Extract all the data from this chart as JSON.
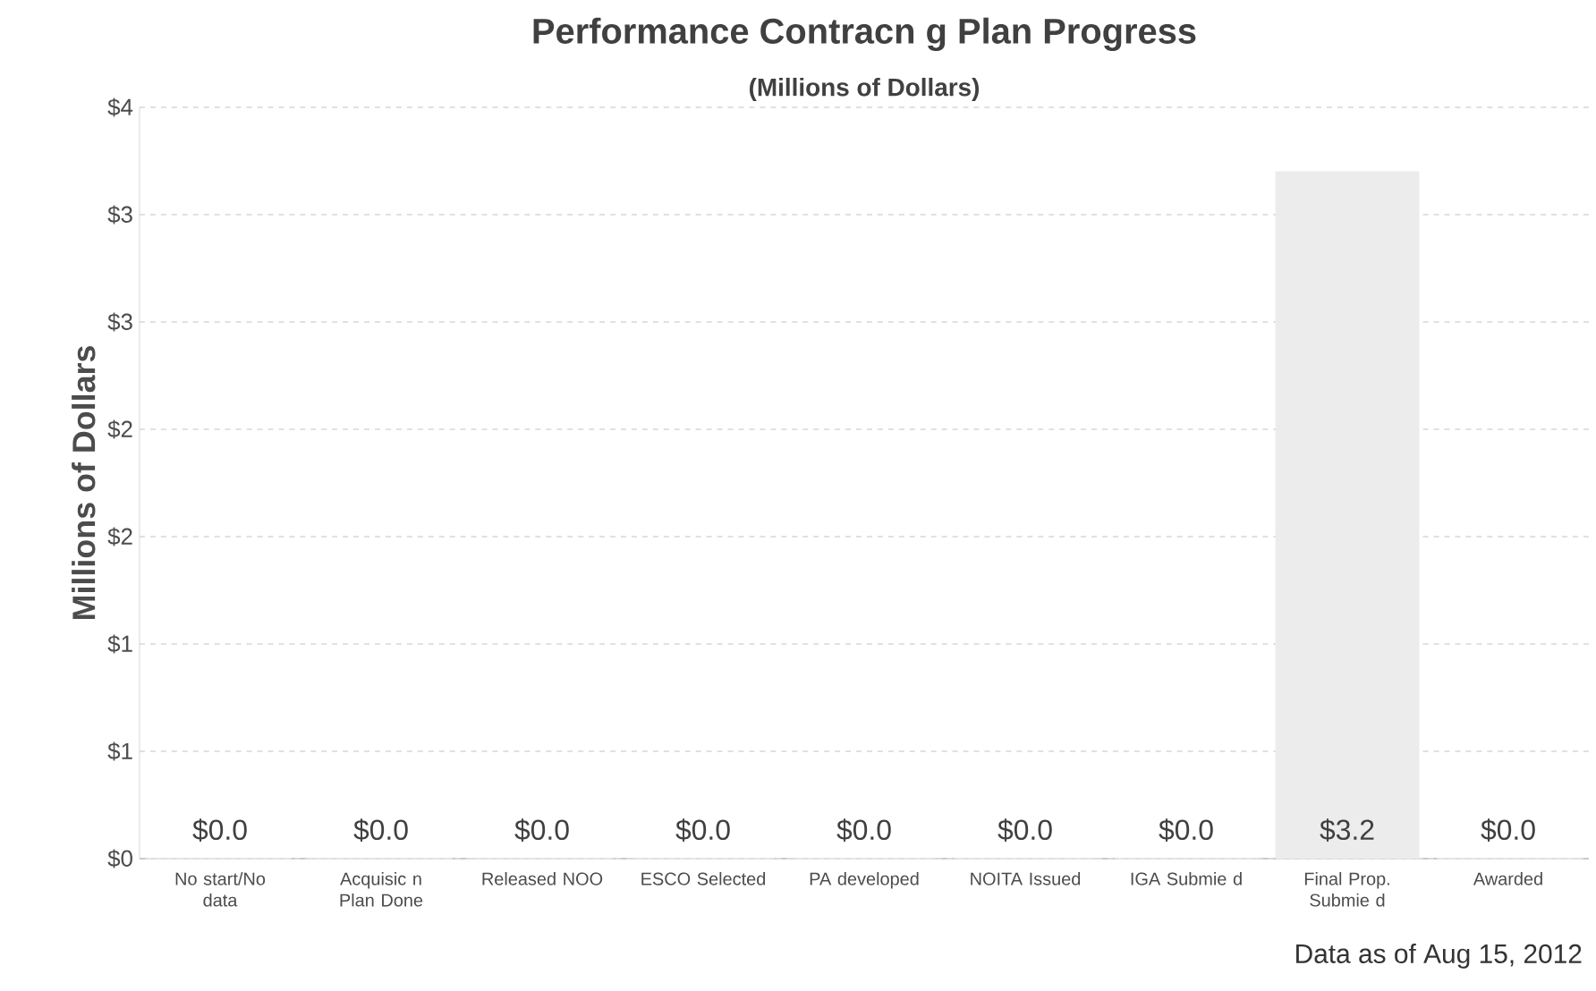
{
  "chart_data": {
    "type": "bar",
    "title": "Performance Contracn g Plan Progress",
    "subtitle": "(Millions of Dollars)",
    "ylabel": "Millions of Dollars",
    "categories": [
      "No start/No data",
      "Acquisic n Plan Done",
      "Released NOO",
      "ESCO Selected",
      "PA developed",
      "NOITA Issued",
      "IGA Submie d",
      "Final Prop. Submie d",
      "Awarded"
    ],
    "values": [
      0,
      0,
      0,
      0,
      0,
      0,
      0,
      3.2,
      0
    ],
    "value_labels": [
      "$0.0",
      "$0.0",
      "$0.0",
      "$0.0",
      "$0.0",
      "$0.0",
      "$0.0",
      "$3.2",
      "$0.0"
    ],
    "color": "#ececec",
    "ylim": [
      0,
      3.5
    ],
    "yticks": [
      {
        "value": 0,
        "label": "$0"
      },
      {
        "value": 0.5,
        "label": "$1"
      },
      {
        "value": 1,
        "label": "$1"
      },
      {
        "value": 1.5,
        "label": "$2"
      },
      {
        "value": 2,
        "label": "$2"
      },
      {
        "value": 2.5,
        "label": "$3"
      },
      {
        "value": 3,
        "label": "$3"
      },
      {
        "value": 3.5,
        "label": "$4"
      }
    ],
    "grid": "y",
    "annotations": [
      "Data as of Aug 15, 2012"
    ]
  }
}
